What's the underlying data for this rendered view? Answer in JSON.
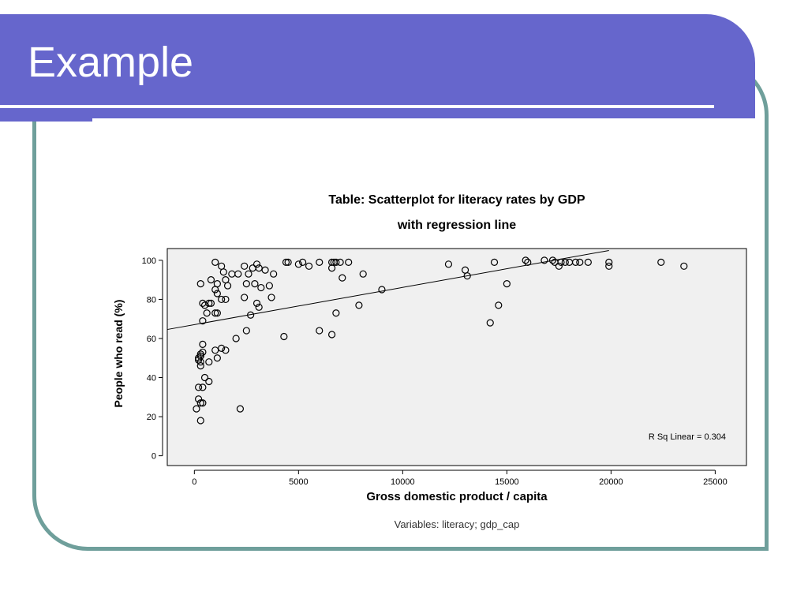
{
  "slide": {
    "title": "Example",
    "colors": {
      "header": "#6666cc",
      "frame_border": "#6f9f9b",
      "plot_background": "#f0f0f0"
    }
  },
  "chart_data": {
    "type": "scatter",
    "title": "Table: Scatterplot for literacy rates by GDP",
    "subtitle": "with regression line",
    "xlabel": "Gross domestic product / capita",
    "ylabel": "People who read (%)",
    "xlim": [
      -1300,
      26500
    ],
    "ylim": [
      -5,
      106
    ],
    "x_ticks": [
      0,
      5000,
      10000,
      15000,
      20000,
      25000
    ],
    "y_ticks": [
      0,
      20,
      40,
      60,
      80,
      100
    ],
    "grid": false,
    "legend": "none",
    "annotation": "R Sq Linear = 0.304",
    "footnote": "Variables: literacy; gdp_cap",
    "regression_line": {
      "x": [
        -1300,
        19900
      ],
      "y": [
        64.6,
        105
      ]
    },
    "points": [
      [
        1000,
        99
      ],
      [
        1300,
        97
      ],
      [
        1400,
        94
      ],
      [
        1500,
        90
      ],
      [
        800,
        90
      ],
      [
        1100,
        88
      ],
      [
        1600,
        87
      ],
      [
        300,
        88
      ],
      [
        1800,
        93
      ],
      [
        2100,
        93
      ],
      [
        1300,
        80
      ],
      [
        1500,
        80
      ],
      [
        1100,
        83
      ],
      [
        1000,
        85
      ],
      [
        700,
        78
      ],
      [
        800,
        78
      ],
      [
        400,
        78
      ],
      [
        500,
        77
      ],
      [
        600,
        73
      ],
      [
        1000,
        73
      ],
      [
        1100,
        73
      ],
      [
        400,
        69
      ],
      [
        2400,
        97
      ],
      [
        2600,
        93
      ],
      [
        2800,
        96
      ],
      [
        3000,
        98
      ],
      [
        3100,
        96
      ],
      [
        3400,
        95
      ],
      [
        3800,
        93
      ],
      [
        2500,
        88
      ],
      [
        2900,
        88
      ],
      [
        3200,
        86
      ],
      [
        3600,
        87
      ],
      [
        2400,
        81
      ],
      [
        3700,
        81
      ],
      [
        3000,
        78
      ],
      [
        3100,
        76
      ],
      [
        2700,
        72
      ],
      [
        2500,
        64
      ],
      [
        2000,
        60
      ],
      [
        4400,
        99
      ],
      [
        4500,
        99
      ],
      [
        5000,
        98
      ],
      [
        5200,
        99
      ],
      [
        5500,
        97
      ],
      [
        6000,
        99
      ],
      [
        6600,
        99
      ],
      [
        6700,
        99
      ],
      [
        6800,
        99
      ],
      [
        7000,
        99
      ],
      [
        7400,
        99
      ],
      [
        6600,
        96
      ],
      [
        7100,
        91
      ],
      [
        8100,
        93
      ],
      [
        7900,
        77
      ],
      [
        6800,
        73
      ],
      [
        9000,
        85
      ],
      [
        4300,
        61
      ],
      [
        6000,
        64
      ],
      [
        6600,
        62
      ],
      [
        12200,
        98
      ],
      [
        13000,
        95
      ],
      [
        13100,
        92
      ],
      [
        14400,
        99
      ],
      [
        15000,
        88
      ],
      [
        14600,
        77
      ],
      [
        14200,
        68
      ],
      [
        15900,
        100
      ],
      [
        16000,
        99
      ],
      [
        16800,
        100
      ],
      [
        17200,
        100
      ],
      [
        17300,
        99
      ],
      [
        17600,
        99
      ],
      [
        17500,
        97
      ],
      [
        17800,
        99
      ],
      [
        18000,
        99
      ],
      [
        18300,
        99
      ],
      [
        18500,
        99
      ],
      [
        18900,
        99
      ],
      [
        19900,
        99
      ],
      [
        19900,
        97
      ],
      [
        22400,
        99
      ],
      [
        23500,
        97
      ],
      [
        1500,
        54
      ],
      [
        1300,
        55
      ],
      [
        1000,
        54
      ],
      [
        1100,
        50
      ],
      [
        700,
        48
      ],
      [
        300,
        46
      ],
      [
        200,
        50
      ],
      [
        300,
        51
      ],
      [
        400,
        53
      ],
      [
        300,
        52
      ],
      [
        200,
        49
      ],
      [
        300,
        48
      ],
      [
        400,
        57
      ],
      [
        500,
        40
      ],
      [
        700,
        38
      ],
      [
        200,
        35
      ],
      [
        400,
        35
      ],
      [
        200,
        29
      ],
      [
        400,
        27
      ],
      [
        100,
        24
      ],
      [
        300,
        27
      ],
      [
        300,
        18
      ],
      [
        2200,
        24
      ]
    ]
  }
}
